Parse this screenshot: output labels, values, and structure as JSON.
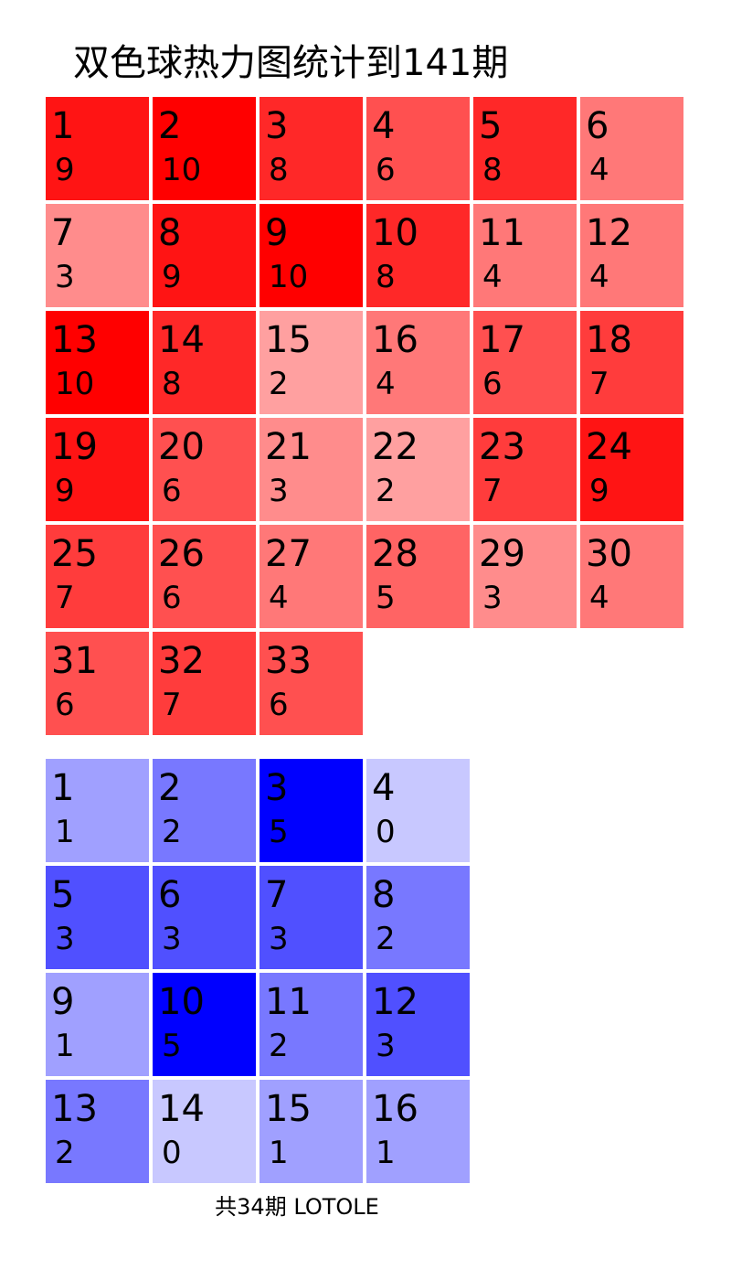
{
  "title": "双色球热力图统计到141期",
  "footer": "共34期 LOTOLE",
  "colors": {
    "red_max": "#ff0000",
    "blue_max": "#0000ff",
    "text": "#000000"
  },
  "chart_data": [
    {
      "type": "heatmap",
      "name": "red",
      "title": "双色球热力图统计到141期",
      "columns": 6,
      "max": 10,
      "numbers": [
        1,
        2,
        3,
        4,
        5,
        6,
        7,
        8,
        9,
        10,
        11,
        12,
        13,
        14,
        15,
        16,
        17,
        18,
        19,
        20,
        21,
        22,
        23,
        24,
        25,
        26,
        27,
        28,
        29,
        30,
        31,
        32,
        33
      ],
      "values": [
        9,
        10,
        8,
        6,
        8,
        4,
        3,
        9,
        10,
        8,
        4,
        4,
        10,
        8,
        2,
        4,
        6,
        7,
        9,
        6,
        3,
        2,
        7,
        9,
        7,
        6,
        4,
        5,
        3,
        4,
        6,
        7,
        6
      ]
    },
    {
      "type": "heatmap",
      "name": "blue",
      "columns": 4,
      "max": 5,
      "numbers": [
        1,
        2,
        3,
        4,
        5,
        6,
        7,
        8,
        9,
        10,
        11,
        12,
        13,
        14,
        15,
        16
      ],
      "values": [
        1,
        2,
        5,
        0,
        3,
        3,
        3,
        2,
        1,
        5,
        2,
        3,
        2,
        0,
        1,
        1
      ]
    }
  ]
}
